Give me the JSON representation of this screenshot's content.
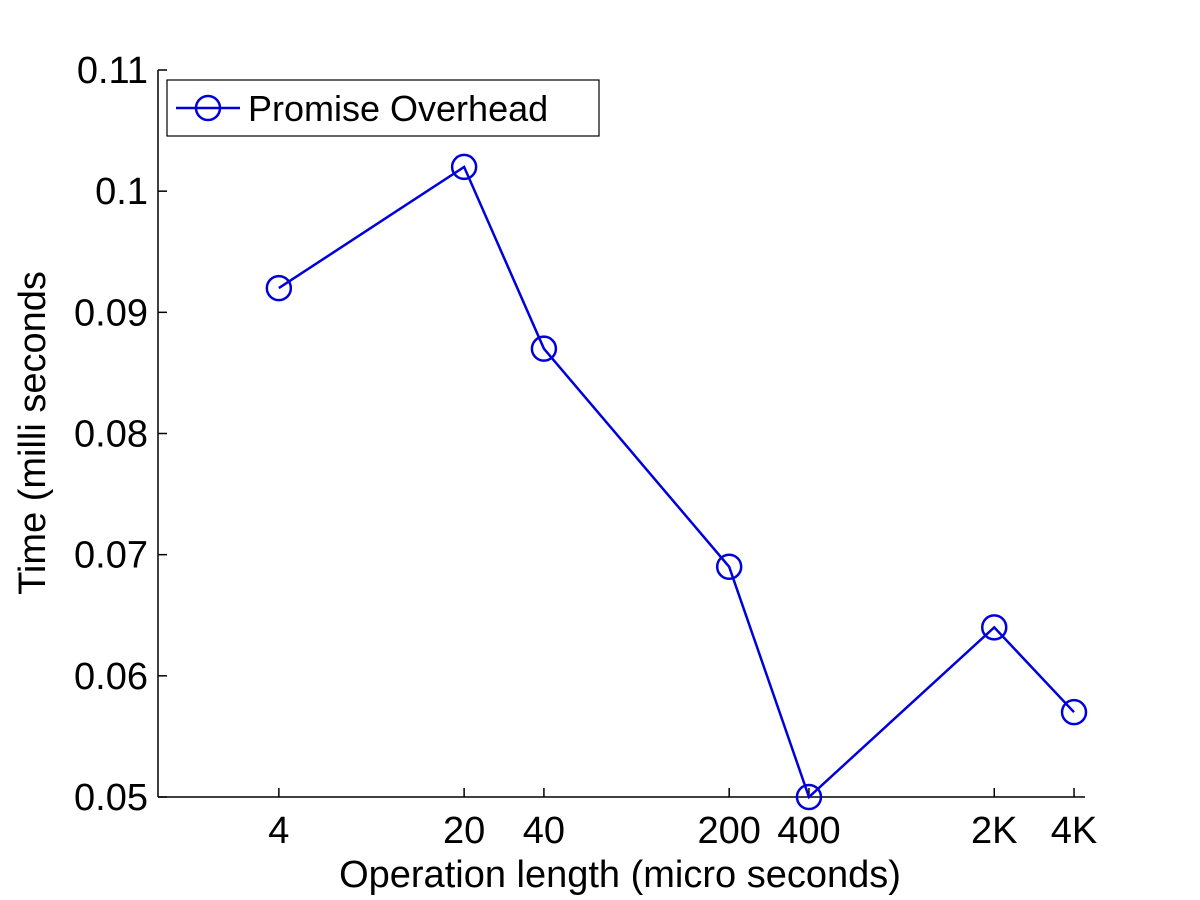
{
  "chart_data": {
    "type": "line",
    "xscale": "log",
    "categories": [
      "4",
      "20",
      "40",
      "200",
      "400",
      "2K",
      "4K"
    ],
    "x": [
      4,
      20,
      40,
      200,
      400,
      2000,
      4000
    ],
    "series": [
      {
        "name": "Promise Overhead",
        "values": [
          0.092,
          0.102,
          0.087,
          0.069,
          0.05,
          0.064,
          0.057
        ],
        "color": "#0000dd",
        "marker": "circle"
      }
    ],
    "ylim": [
      0.05,
      0.11
    ],
    "yticks": [
      "0.05",
      "0.06",
      "0.07",
      "0.08",
      "0.09",
      "0.1",
      "0.11"
    ],
    "yticks_values": [
      0.05,
      0.06,
      0.07,
      0.08,
      0.09,
      0.1,
      0.11
    ],
    "xlabel": "Operation length (micro seconds)",
    "ylabel": "Time (milli seconds",
    "legend_position": "top-left",
    "grid": false
  }
}
